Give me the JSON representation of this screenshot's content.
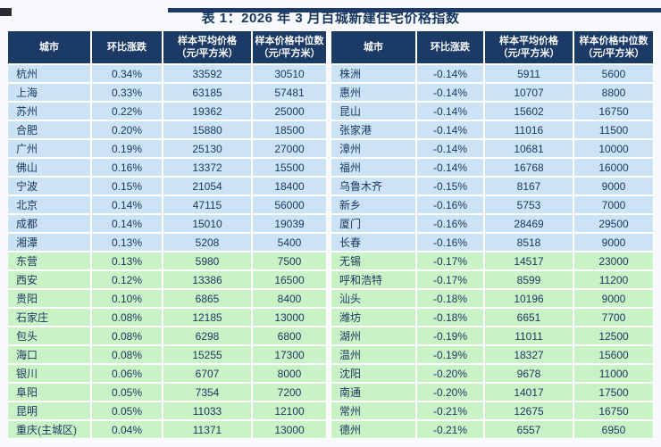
{
  "title": "表 1：2026 年 3 月百城新建住宅价格指数",
  "colors": {
    "header_bg": "#1b3a66",
    "row_blue": "#cbe3f5",
    "row_green": "#c9f2c7",
    "cell_text": "#17375d",
    "title_text": "#17375d",
    "top_strip": "#1e3a68",
    "page_bg": "#f7f9fc"
  },
  "columns": {
    "city": "城市",
    "change": "环比涨跌",
    "avg": "样本平均价格",
    "median": "样本价格中位数",
    "unit": "（元/平方米）"
  },
  "tables": {
    "left": {
      "rows": [
        {
          "city": "杭州",
          "change": "0.34%",
          "avg": "33592",
          "median": "30510",
          "zone": "blue"
        },
        {
          "city": "上海",
          "change": "0.33%",
          "avg": "63185",
          "median": "57481",
          "zone": "blue"
        },
        {
          "city": "苏州",
          "change": "0.22%",
          "avg": "19362",
          "median": "25000",
          "zone": "blue"
        },
        {
          "city": "合肥",
          "change": "0.20%",
          "avg": "15880",
          "median": "18500",
          "zone": "blue"
        },
        {
          "city": "广州",
          "change": "0.19%",
          "avg": "25130",
          "median": "27000",
          "zone": "blue"
        },
        {
          "city": "佛山",
          "change": "0.16%",
          "avg": "13372",
          "median": "15500",
          "zone": "blue"
        },
        {
          "city": "宁波",
          "change": "0.15%",
          "avg": "21054",
          "median": "18400",
          "zone": "blue"
        },
        {
          "city": "北京",
          "change": "0.14%",
          "avg": "47115",
          "median": "56000",
          "zone": "blue"
        },
        {
          "city": "成都",
          "change": "0.14%",
          "avg": "15010",
          "median": "19039",
          "zone": "blue"
        },
        {
          "city": "湘潭",
          "change": "0.13%",
          "avg": "5208",
          "median": "5400",
          "zone": "blue"
        },
        {
          "city": "东营",
          "change": "0.13%",
          "avg": "5980",
          "median": "7500",
          "zone": "green"
        },
        {
          "city": "西安",
          "change": "0.12%",
          "avg": "13386",
          "median": "16500",
          "zone": "green"
        },
        {
          "city": "贵阳",
          "change": "0.10%",
          "avg": "6865",
          "median": "8400",
          "zone": "green"
        },
        {
          "city": "石家庄",
          "change": "0.08%",
          "avg": "12185",
          "median": "13000",
          "zone": "green"
        },
        {
          "city": "包头",
          "change": "0.08%",
          "avg": "6298",
          "median": "6800",
          "zone": "green"
        },
        {
          "city": "海口",
          "change": "0.08%",
          "avg": "15255",
          "median": "17300",
          "zone": "green"
        },
        {
          "city": "银川",
          "change": "0.06%",
          "avg": "6707",
          "median": "8000",
          "zone": "green"
        },
        {
          "city": "阜阳",
          "change": "0.05%",
          "avg": "7354",
          "median": "7200",
          "zone": "green"
        },
        {
          "city": "昆明",
          "change": "0.05%",
          "avg": "11033",
          "median": "12100",
          "zone": "green"
        },
        {
          "city": "重庆(主城区)",
          "change": "0.04%",
          "avg": "11371",
          "median": "13000",
          "zone": "green"
        }
      ]
    },
    "right": {
      "rows": [
        {
          "city": "株洲",
          "change": "-0.14%",
          "avg": "5911",
          "median": "5600",
          "zone": "blue"
        },
        {
          "city": "惠州",
          "change": "-0.14%",
          "avg": "10707",
          "median": "8800",
          "zone": "blue"
        },
        {
          "city": "昆山",
          "change": "-0.14%",
          "avg": "15602",
          "median": "16750",
          "zone": "blue"
        },
        {
          "city": "张家港",
          "change": "-0.14%",
          "avg": "11016",
          "median": "11500",
          "zone": "blue"
        },
        {
          "city": "漳州",
          "change": "-0.14%",
          "avg": "10681",
          "median": "10000",
          "zone": "blue"
        },
        {
          "city": "福州",
          "change": "-0.14%",
          "avg": "16768",
          "median": "16000",
          "zone": "blue"
        },
        {
          "city": "乌鲁木齐",
          "change": "-0.15%",
          "avg": "8167",
          "median": "9000",
          "zone": "blue"
        },
        {
          "city": "新乡",
          "change": "-0.16%",
          "avg": "5753",
          "median": "7000",
          "zone": "blue"
        },
        {
          "city": "厦门",
          "change": "-0.16%",
          "avg": "28469",
          "median": "29500",
          "zone": "blue"
        },
        {
          "city": "长春",
          "change": "-0.16%",
          "avg": "8518",
          "median": "9000",
          "zone": "blue"
        },
        {
          "city": "无锡",
          "change": "-0.17%",
          "avg": "14517",
          "median": "23000",
          "zone": "green"
        },
        {
          "city": "呼和浩特",
          "change": "-0.17%",
          "avg": "8599",
          "median": "11200",
          "zone": "green"
        },
        {
          "city": "汕头",
          "change": "-0.18%",
          "avg": "10196",
          "median": "9000",
          "zone": "green"
        },
        {
          "city": "潍坊",
          "change": "-0.18%",
          "avg": "6651",
          "median": "7700",
          "zone": "green"
        },
        {
          "city": "湖州",
          "change": "-0.19%",
          "avg": "11011",
          "median": "12500",
          "zone": "green"
        },
        {
          "city": "温州",
          "change": "-0.19%",
          "avg": "18327",
          "median": "15600",
          "zone": "green"
        },
        {
          "city": "沈阳",
          "change": "-0.20%",
          "avg": "9678",
          "median": "11000",
          "zone": "green"
        },
        {
          "city": "南通",
          "change": "-0.20%",
          "avg": "14017",
          "median": "17500",
          "zone": "green"
        },
        {
          "city": "常州",
          "change": "-0.21%",
          "avg": "12675",
          "median": "16750",
          "zone": "green"
        },
        {
          "city": "德州",
          "change": "-0.21%",
          "avg": "6557",
          "median": "6950",
          "zone": "green"
        }
      ]
    }
  }
}
